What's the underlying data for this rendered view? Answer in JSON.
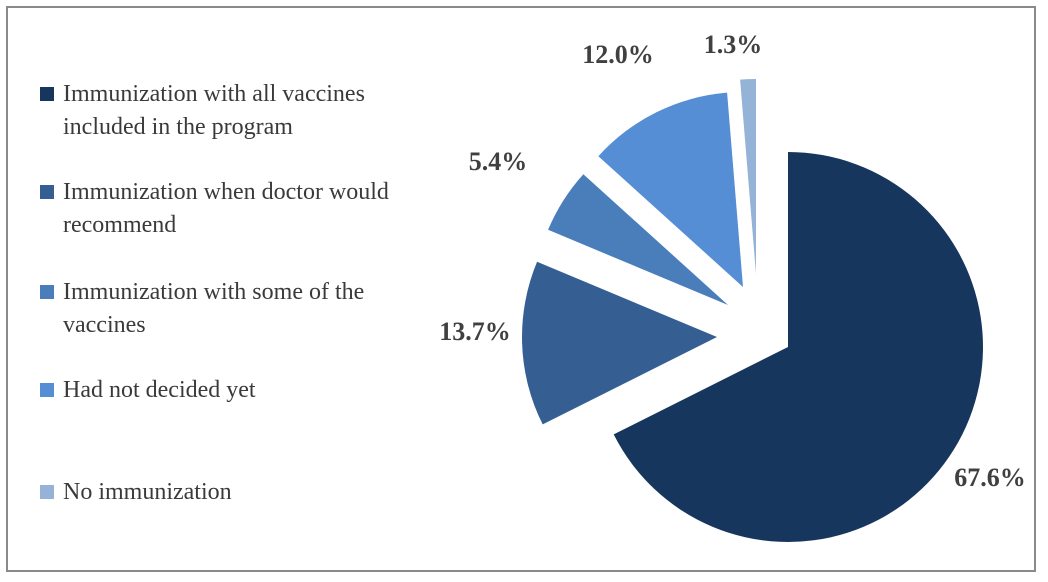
{
  "chart_data": {
    "type": "pie",
    "title": "",
    "legend_position": "left",
    "slices": [
      {
        "label": "Immunization with all vaccines included in the program",
        "value": 67.6,
        "value_label": "67.6%",
        "color": "#17365d"
      },
      {
        "label": "Immunization when doctor would recommend",
        "value": 13.7,
        "value_label": "13.7%",
        "color": "#355f93"
      },
      {
        "label": "Immunization with some of the vaccines",
        "value": 5.4,
        "value_label": "5.4%",
        "color": "#4a7ebb"
      },
      {
        "label": "Had not decided yet",
        "value": 12.0,
        "value_label": "12.0%",
        "color": "#558ed5"
      },
      {
        "label": "No immunization",
        "value": 1.3,
        "value_label": "1.3%",
        "color": "#95b3d7"
      }
    ]
  }
}
